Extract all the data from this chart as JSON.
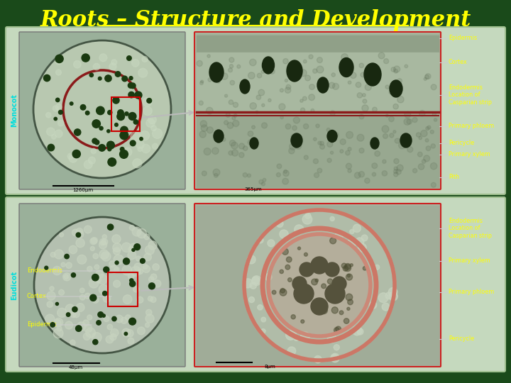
{
  "title": "Roots – Structure and Development",
  "title_color": "#FFFF00",
  "title_fontsize": 22,
  "bg_color": "#1a4a1a",
  "label_color": "#FFFF00",
  "monocot_label": "Monocot",
  "eudicot_label": "Eudicot",
  "monocot_labels_right": [
    "Epidermis",
    "Cortex",
    "Endodermis\nLocation of\nCasparian strip",
    "Primary phloem",
    "Pericycle",
    "Primary xylem",
    "Pith"
  ],
  "eudicot_labels_right": [
    "Endodermis\nLocation of\nCasparian strip",
    "Primary xylem",
    "Primary phloem",
    "Pericycle"
  ],
  "eudicot_labels_left": [
    "Endodermis",
    "Cortex",
    "Epidermis"
  ],
  "monocot_scale1": "1260μm",
  "monocot_scale2": "365μm",
  "eudicot_scale1": "48μm",
  "eudicot_scale2": "8μm"
}
